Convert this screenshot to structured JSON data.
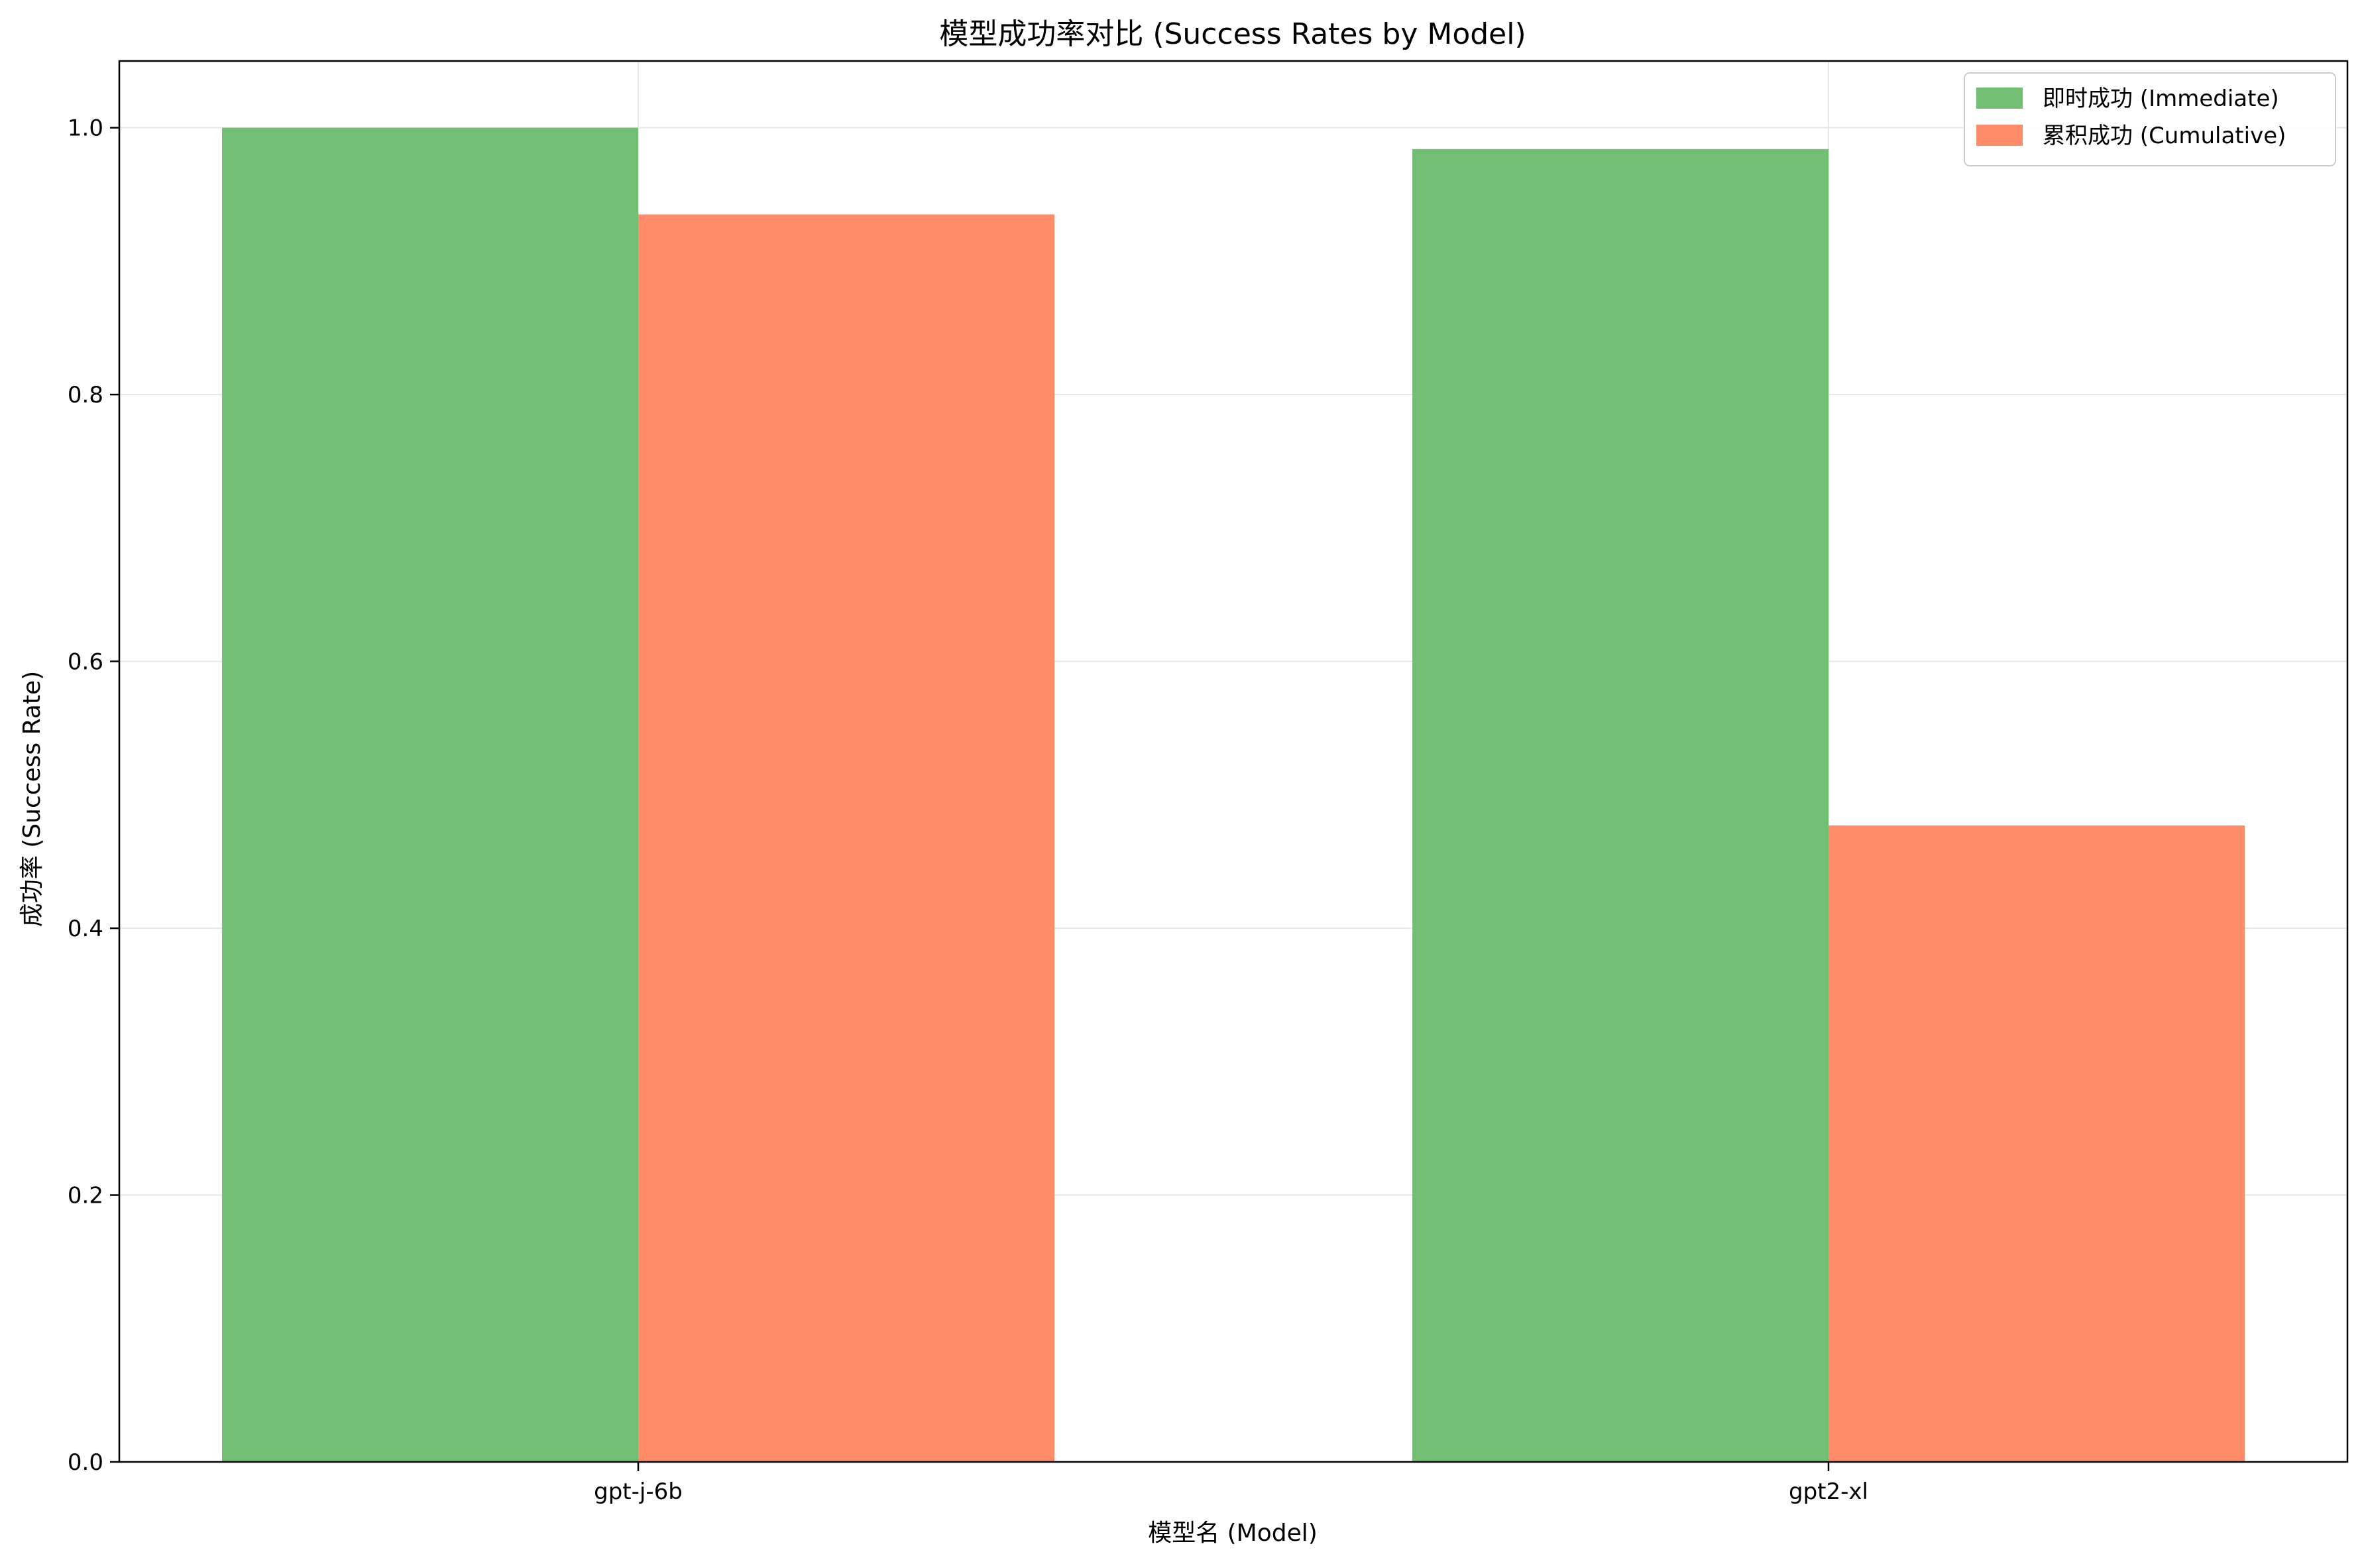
{
  "chart_data": {
    "type": "bar",
    "title": "模型成功率对比 (Success Rates by Model)",
    "xlabel": "模型名 (Model)",
    "ylabel": "成功率 (Success Rate)",
    "categories": [
      "gpt-j-6b",
      "gpt2-xl"
    ],
    "series": [
      {
        "name": "即时成功 (Immediate)",
        "values": [
          1.0,
          0.984
        ],
        "color": "#72bf73"
      },
      {
        "name": "累积成功 (Cumulative)",
        "values": [
          0.935,
          0.477
        ],
        "color": "#ff8c69"
      }
    ],
    "ylim": [
      0,
      1.05
    ],
    "yticks": [
      0.0,
      0.2,
      0.4,
      0.6,
      0.8,
      1.0
    ],
    "ytick_labels": [
      "0.0",
      "0.2",
      "0.4",
      "0.6",
      "0.8",
      "1.0"
    ],
    "grid": true,
    "legend_position": "top-right"
  }
}
